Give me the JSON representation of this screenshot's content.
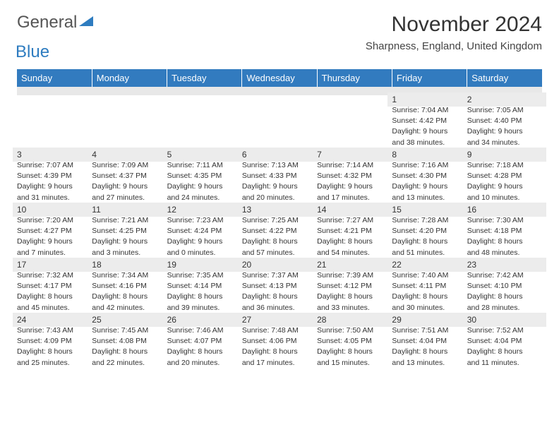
{
  "logo": {
    "general": "General",
    "blue": "Blue",
    "accent_color": "#2e7cc0"
  },
  "title": "November 2024",
  "location": "Sharpness, England, United Kingdom",
  "header_bg": "#327bbf",
  "header_fg": "#ffffff",
  "day_bg": "#ececec",
  "rule_color": "#2e6da4",
  "weekdays": [
    "Sunday",
    "Monday",
    "Tuesday",
    "Wednesday",
    "Thursday",
    "Friday",
    "Saturday"
  ],
  "weeks": [
    [
      null,
      null,
      null,
      null,
      null,
      {
        "n": "1",
        "sunrise": "Sunrise: 7:04 AM",
        "sunset": "Sunset: 4:42 PM",
        "day1": "Daylight: 9 hours",
        "day2": "and 38 minutes."
      },
      {
        "n": "2",
        "sunrise": "Sunrise: 7:05 AM",
        "sunset": "Sunset: 4:40 PM",
        "day1": "Daylight: 9 hours",
        "day2": "and 34 minutes."
      }
    ],
    [
      {
        "n": "3",
        "sunrise": "Sunrise: 7:07 AM",
        "sunset": "Sunset: 4:39 PM",
        "day1": "Daylight: 9 hours",
        "day2": "and 31 minutes."
      },
      {
        "n": "4",
        "sunrise": "Sunrise: 7:09 AM",
        "sunset": "Sunset: 4:37 PM",
        "day1": "Daylight: 9 hours",
        "day2": "and 27 minutes."
      },
      {
        "n": "5",
        "sunrise": "Sunrise: 7:11 AM",
        "sunset": "Sunset: 4:35 PM",
        "day1": "Daylight: 9 hours",
        "day2": "and 24 minutes."
      },
      {
        "n": "6",
        "sunrise": "Sunrise: 7:13 AM",
        "sunset": "Sunset: 4:33 PM",
        "day1": "Daylight: 9 hours",
        "day2": "and 20 minutes."
      },
      {
        "n": "7",
        "sunrise": "Sunrise: 7:14 AM",
        "sunset": "Sunset: 4:32 PM",
        "day1": "Daylight: 9 hours",
        "day2": "and 17 minutes."
      },
      {
        "n": "8",
        "sunrise": "Sunrise: 7:16 AM",
        "sunset": "Sunset: 4:30 PM",
        "day1": "Daylight: 9 hours",
        "day2": "and 13 minutes."
      },
      {
        "n": "9",
        "sunrise": "Sunrise: 7:18 AM",
        "sunset": "Sunset: 4:28 PM",
        "day1": "Daylight: 9 hours",
        "day2": "and 10 minutes."
      }
    ],
    [
      {
        "n": "10",
        "sunrise": "Sunrise: 7:20 AM",
        "sunset": "Sunset: 4:27 PM",
        "day1": "Daylight: 9 hours",
        "day2": "and 7 minutes."
      },
      {
        "n": "11",
        "sunrise": "Sunrise: 7:21 AM",
        "sunset": "Sunset: 4:25 PM",
        "day1": "Daylight: 9 hours",
        "day2": "and 3 minutes."
      },
      {
        "n": "12",
        "sunrise": "Sunrise: 7:23 AM",
        "sunset": "Sunset: 4:24 PM",
        "day1": "Daylight: 9 hours",
        "day2": "and 0 minutes."
      },
      {
        "n": "13",
        "sunrise": "Sunrise: 7:25 AM",
        "sunset": "Sunset: 4:22 PM",
        "day1": "Daylight: 8 hours",
        "day2": "and 57 minutes."
      },
      {
        "n": "14",
        "sunrise": "Sunrise: 7:27 AM",
        "sunset": "Sunset: 4:21 PM",
        "day1": "Daylight: 8 hours",
        "day2": "and 54 minutes."
      },
      {
        "n": "15",
        "sunrise": "Sunrise: 7:28 AM",
        "sunset": "Sunset: 4:20 PM",
        "day1": "Daylight: 8 hours",
        "day2": "and 51 minutes."
      },
      {
        "n": "16",
        "sunrise": "Sunrise: 7:30 AM",
        "sunset": "Sunset: 4:18 PM",
        "day1": "Daylight: 8 hours",
        "day2": "and 48 minutes."
      }
    ],
    [
      {
        "n": "17",
        "sunrise": "Sunrise: 7:32 AM",
        "sunset": "Sunset: 4:17 PM",
        "day1": "Daylight: 8 hours",
        "day2": "and 45 minutes."
      },
      {
        "n": "18",
        "sunrise": "Sunrise: 7:34 AM",
        "sunset": "Sunset: 4:16 PM",
        "day1": "Daylight: 8 hours",
        "day2": "and 42 minutes."
      },
      {
        "n": "19",
        "sunrise": "Sunrise: 7:35 AM",
        "sunset": "Sunset: 4:14 PM",
        "day1": "Daylight: 8 hours",
        "day2": "and 39 minutes."
      },
      {
        "n": "20",
        "sunrise": "Sunrise: 7:37 AM",
        "sunset": "Sunset: 4:13 PM",
        "day1": "Daylight: 8 hours",
        "day2": "and 36 minutes."
      },
      {
        "n": "21",
        "sunrise": "Sunrise: 7:39 AM",
        "sunset": "Sunset: 4:12 PM",
        "day1": "Daylight: 8 hours",
        "day2": "and 33 minutes."
      },
      {
        "n": "22",
        "sunrise": "Sunrise: 7:40 AM",
        "sunset": "Sunset: 4:11 PM",
        "day1": "Daylight: 8 hours",
        "day2": "and 30 minutes."
      },
      {
        "n": "23",
        "sunrise": "Sunrise: 7:42 AM",
        "sunset": "Sunset: 4:10 PM",
        "day1": "Daylight: 8 hours",
        "day2": "and 28 minutes."
      }
    ],
    [
      {
        "n": "24",
        "sunrise": "Sunrise: 7:43 AM",
        "sunset": "Sunset: 4:09 PM",
        "day1": "Daylight: 8 hours",
        "day2": "and 25 minutes."
      },
      {
        "n": "25",
        "sunrise": "Sunrise: 7:45 AM",
        "sunset": "Sunset: 4:08 PM",
        "day1": "Daylight: 8 hours",
        "day2": "and 22 minutes."
      },
      {
        "n": "26",
        "sunrise": "Sunrise: 7:46 AM",
        "sunset": "Sunset: 4:07 PM",
        "day1": "Daylight: 8 hours",
        "day2": "and 20 minutes."
      },
      {
        "n": "27",
        "sunrise": "Sunrise: 7:48 AM",
        "sunset": "Sunset: 4:06 PM",
        "day1": "Daylight: 8 hours",
        "day2": "and 17 minutes."
      },
      {
        "n": "28",
        "sunrise": "Sunrise: 7:50 AM",
        "sunset": "Sunset: 4:05 PM",
        "day1": "Daylight: 8 hours",
        "day2": "and 15 minutes."
      },
      {
        "n": "29",
        "sunrise": "Sunrise: 7:51 AM",
        "sunset": "Sunset: 4:04 PM",
        "day1": "Daylight: 8 hours",
        "day2": "and 13 minutes."
      },
      {
        "n": "30",
        "sunrise": "Sunrise: 7:52 AM",
        "sunset": "Sunset: 4:04 PM",
        "day1": "Daylight: 8 hours",
        "day2": "and 11 minutes."
      }
    ]
  ]
}
